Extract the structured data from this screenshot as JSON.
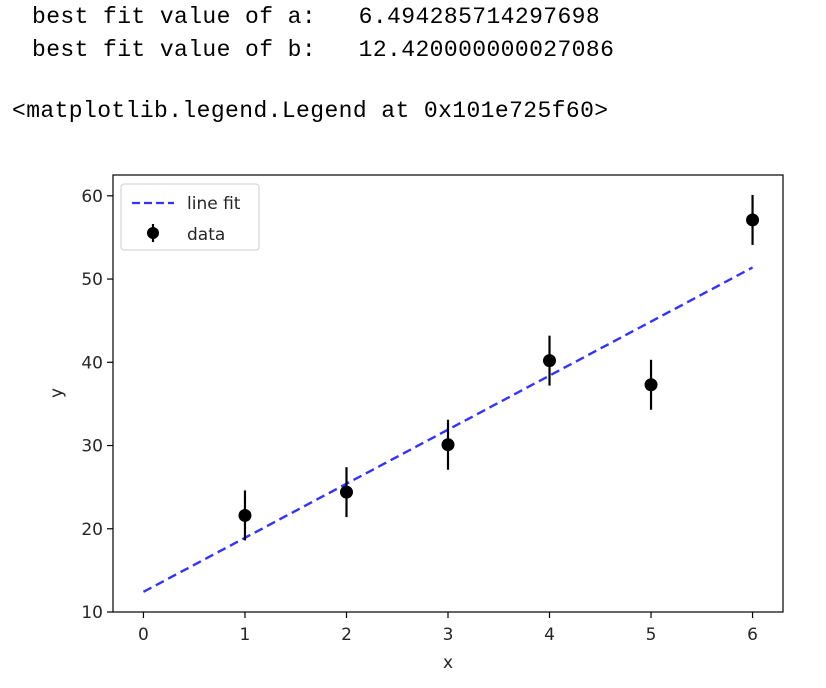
{
  "output": {
    "line1": "best fit value of a:   6.494285714297698",
    "line2": "best fit value of b:   12.420000000027086",
    "line3": "<matplotlib.legend.Legend at 0x101e725f60>"
  },
  "chart_data": {
    "type": "scatter",
    "title": "",
    "xlabel": "x",
    "ylabel": "y",
    "xlim": [
      -0.3,
      6.3
    ],
    "ylim": [
      10,
      62.5
    ],
    "xticks": [
      0,
      1,
      2,
      3,
      4,
      5,
      6
    ],
    "yticks": [
      10,
      20,
      30,
      40,
      50,
      60
    ],
    "grid": false,
    "legend_position": "upper-left",
    "series": [
      {
        "name": "line fit",
        "kind": "line",
        "style": "dashed",
        "color": "#3333ff",
        "x": [
          0,
          6
        ],
        "y": [
          12.42,
          51.39
        ]
      },
      {
        "name": "data",
        "kind": "errorbar",
        "color": "#000000",
        "x": [
          1,
          2,
          3,
          4,
          5,
          6
        ],
        "y": [
          21.6,
          24.4,
          30.1,
          40.2,
          37.3,
          57.1
        ],
        "yerr": [
          3.0,
          3.0,
          3.0,
          3.0,
          3.0,
          3.0
        ]
      }
    ]
  }
}
